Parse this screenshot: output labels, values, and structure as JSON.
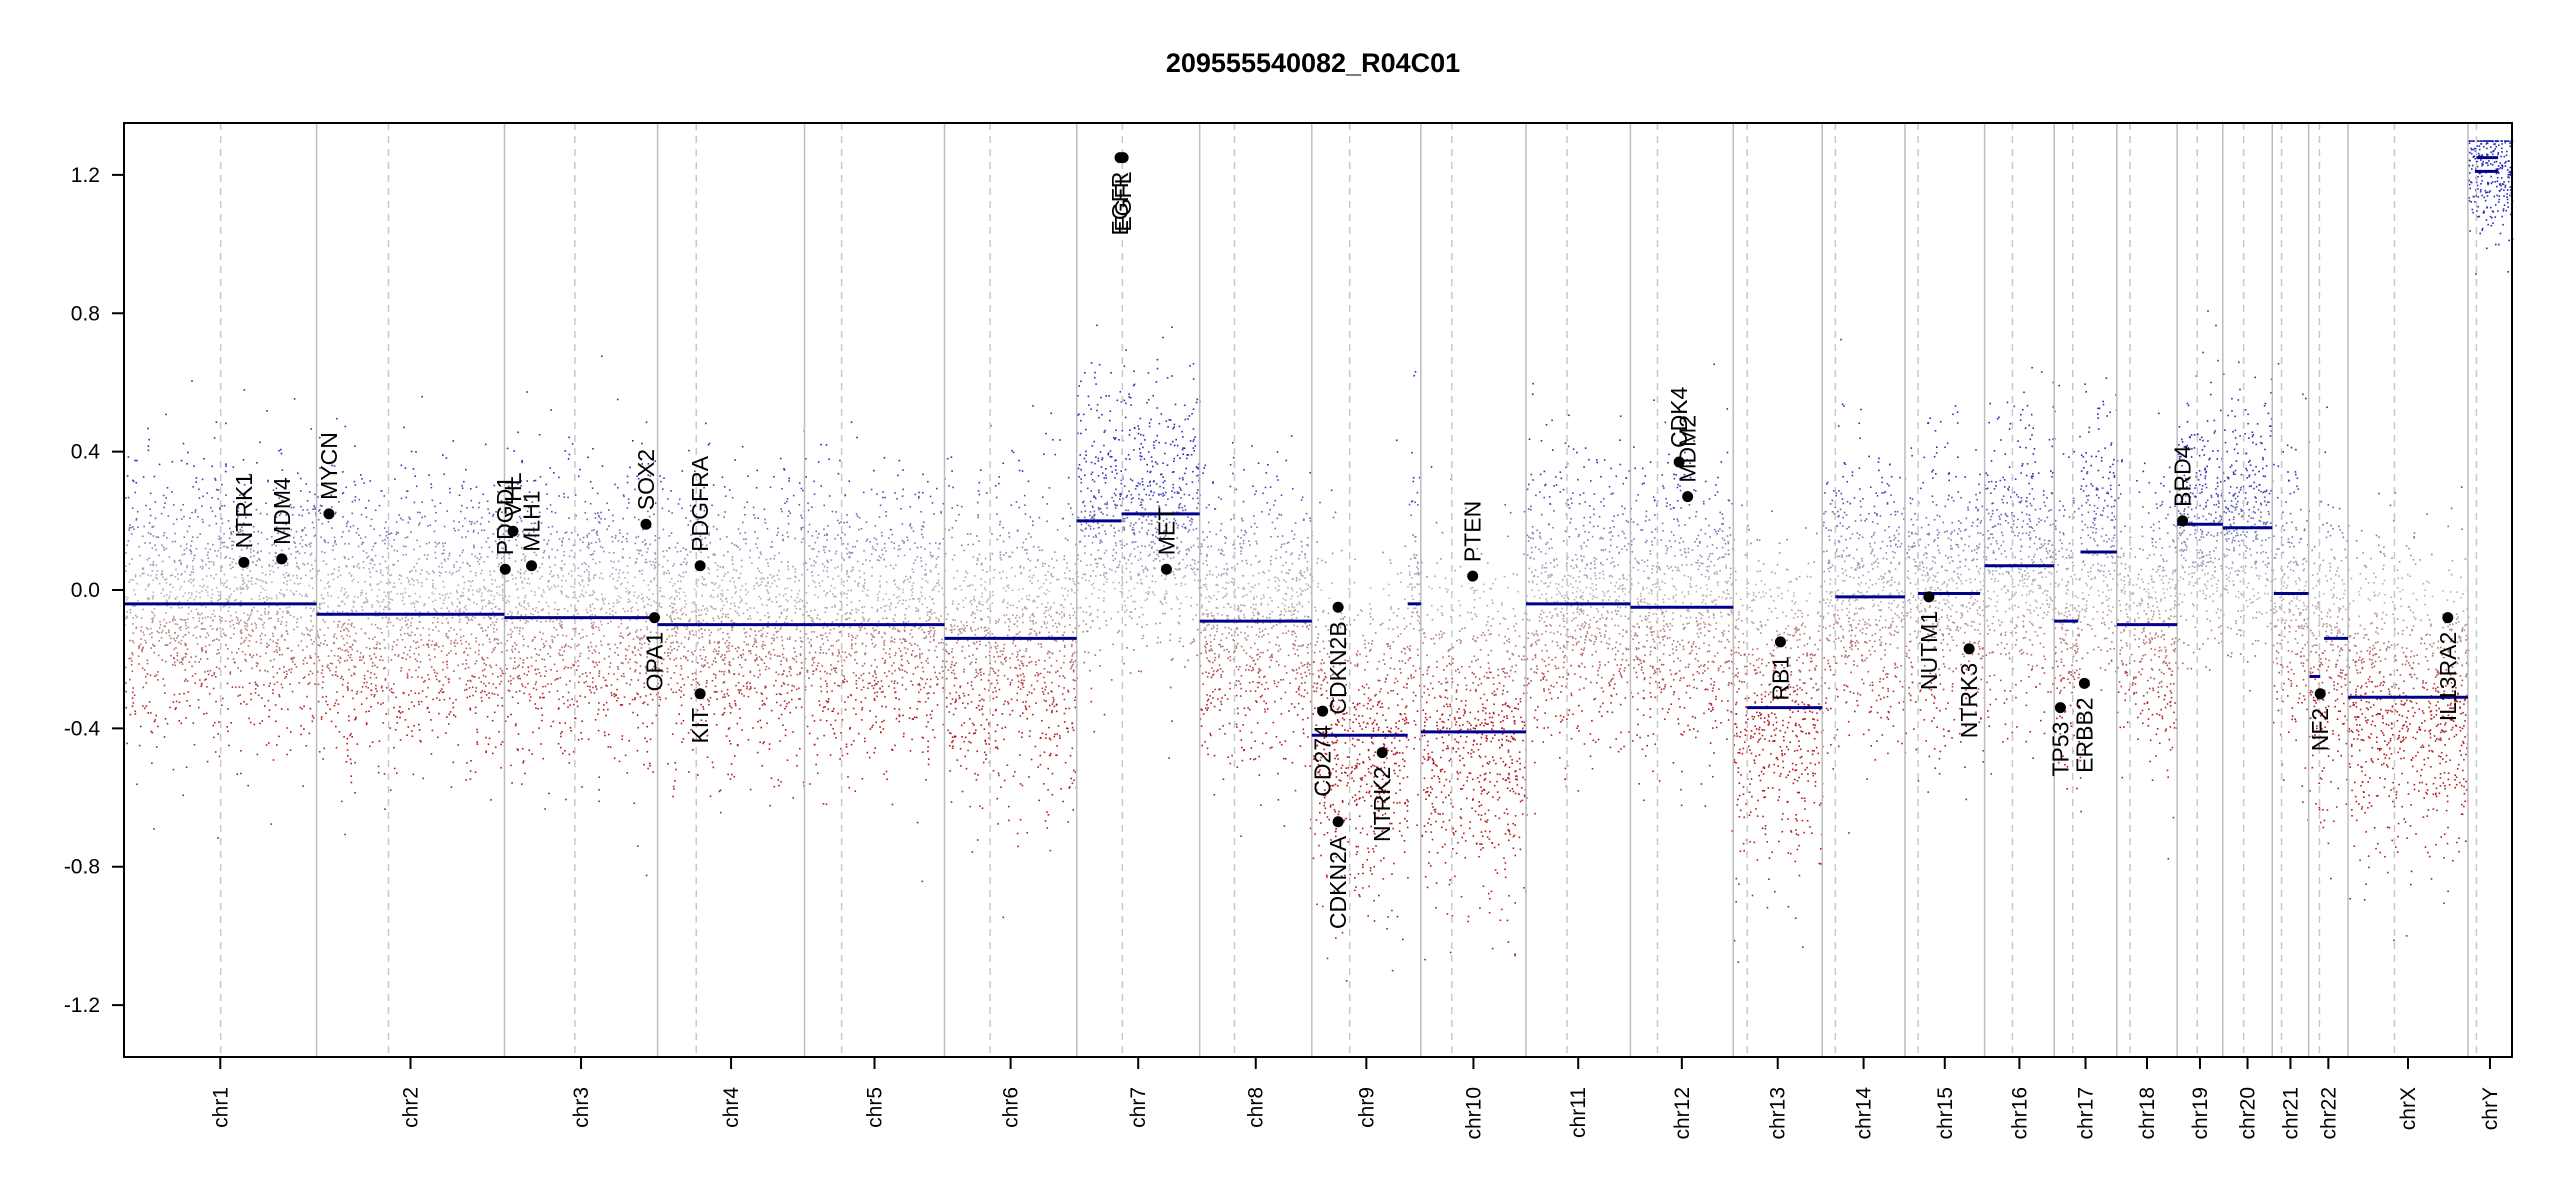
{
  "chart_data": {
    "type": "scatter",
    "title": "209555540082_R04C01",
    "xlabel": "",
    "ylabel": "",
    "ylim": [
      -1.35,
      1.35
    ],
    "y_ticks": [
      1.2,
      0.8,
      0.4,
      0.0,
      -0.4,
      -0.8,
      -1.2
    ],
    "y_tick_labels": [
      "1.2",
      "0.8",
      "0.4",
      "0.0",
      "-0.4",
      "-0.8",
      "-1.2"
    ],
    "grid": false,
    "colors": {
      "segment": "#00008b",
      "gain": "#2c2cb3",
      "loss": "#b01a1a",
      "neutral": "#b8b8b8",
      "chrom_border": "#bdbdbd",
      "centromere": "#c8c8c8",
      "gene_point": "#000000"
    },
    "chromosomes": [
      {
        "name": "chr1",
        "start": 0,
        "end": 249,
        "centromere": 125,
        "segments": [
          {
            "x0": 0,
            "x1": 249,
            "y": -0.04
          }
        ],
        "sd": 0.2
      },
      {
        "name": "chr2",
        "start": 249,
        "end": 492,
        "centromere": 342,
        "segments": [
          {
            "x0": 249,
            "x1": 492,
            "y": -0.07
          }
        ],
        "sd": 0.2
      },
      {
        "name": "chr3",
        "start": 492,
        "end": 690,
        "centromere": 583,
        "segments": [
          {
            "x0": 492,
            "x1": 690,
            "y": -0.08
          }
        ],
        "sd": 0.2
      },
      {
        "name": "chr4",
        "start": 690,
        "end": 880,
        "centromere": 740,
        "segments": [
          {
            "x0": 690,
            "x1": 880,
            "y": -0.1
          }
        ],
        "sd": 0.2
      },
      {
        "name": "chr5",
        "start": 880,
        "end": 1061,
        "centromere": 928,
        "segments": [
          {
            "x0": 880,
            "x1": 1061,
            "y": -0.1
          }
        ],
        "sd": 0.2
      },
      {
        "name": "chr6",
        "start": 1061,
        "end": 1232,
        "centromere": 1120,
        "segments": [
          {
            "x0": 1061,
            "x1": 1232,
            "y": -0.14
          }
        ],
        "sd": 0.22
      },
      {
        "name": "chr7",
        "start": 1232,
        "end": 1391,
        "centromere": 1291,
        "segments": [
          {
            "x0": 1232,
            "x1": 1290,
            "y": 0.2
          },
          {
            "x0": 1290,
            "x1": 1391,
            "y": 0.22
          }
        ],
        "sd": 0.2
      },
      {
        "name": "chr8",
        "start": 1391,
        "end": 1536,
        "centromere": 1436,
        "segments": [
          {
            "x0": 1391,
            "x1": 1536,
            "y": -0.09
          }
        ],
        "sd": 0.2
      },
      {
        "name": "chr9",
        "start": 1536,
        "end": 1677,
        "centromere": 1585,
        "segments": [
          {
            "x0": 1536,
            "x1": 1660,
            "y": -0.42
          },
          {
            "x0": 1660,
            "x1": 1677,
            "y": -0.04
          }
        ],
        "sd": 0.24
      },
      {
        "name": "chr10",
        "start": 1677,
        "end": 1813,
        "centromere": 1717,
        "segments": [
          {
            "x0": 1677,
            "x1": 1813,
            "y": -0.41
          }
        ],
        "sd": 0.24
      },
      {
        "name": "chr11",
        "start": 1813,
        "end": 1948,
        "centromere": 1866,
        "segments": [
          {
            "x0": 1813,
            "x1": 1948,
            "y": -0.04
          }
        ],
        "sd": 0.2
      },
      {
        "name": "chr12",
        "start": 1948,
        "end": 2081,
        "centromere": 1983,
        "segments": [
          {
            "x0": 1948,
            "x1": 2081,
            "y": -0.05
          }
        ],
        "sd": 0.2
      },
      {
        "name": "chr13",
        "start": 2081,
        "end": 2196,
        "centromere": 2099,
        "segments": [
          {
            "x0": 2099,
            "x1": 2196,
            "y": -0.34
          }
        ],
        "sd": 0.24
      },
      {
        "name": "chr14",
        "start": 2196,
        "end": 2303,
        "centromere": 2213,
        "segments": [
          {
            "x0": 2213,
            "x1": 2303,
            "y": -0.02
          }
        ],
        "sd": 0.2
      },
      {
        "name": "chr15",
        "start": 2303,
        "end": 2406,
        "centromere": 2320,
        "segments": [
          {
            "x0": 2320,
            "x1": 2400,
            "y": -0.01
          }
        ],
        "sd": 0.2
      },
      {
        "name": "chr16",
        "start": 2406,
        "end": 2496,
        "centromere": 2442,
        "segments": [
          {
            "x0": 2406,
            "x1": 2496,
            "y": 0.07
          }
        ],
        "sd": 0.2
      },
      {
        "name": "chr17",
        "start": 2496,
        "end": 2577,
        "centromere": 2520,
        "segments": [
          {
            "x0": 2496,
            "x1": 2527,
            "y": -0.09
          },
          {
            "x0": 2530,
            "x1": 2577,
            "y": 0.11
          }
        ],
        "sd": 0.22
      },
      {
        "name": "chr18",
        "start": 2577,
        "end": 2655,
        "centromere": 2594,
        "segments": [
          {
            "x0": 2577,
            "x1": 2655,
            "y": -0.1
          }
        ],
        "sd": 0.2
      },
      {
        "name": "chr19",
        "start": 2655,
        "end": 2714,
        "centromere": 2681,
        "segments": [
          {
            "x0": 2655,
            "x1": 2714,
            "y": 0.19
          }
        ],
        "sd": 0.18
      },
      {
        "name": "chr20",
        "start": 2714,
        "end": 2778,
        "centromere": 2741,
        "segments": [
          {
            "x0": 2714,
            "x1": 2778,
            "y": 0.18
          }
        ],
        "sd": 0.18
      },
      {
        "name": "chr21",
        "start": 2778,
        "end": 2825,
        "centromere": 2790,
        "segments": [
          {
            "x0": 2780,
            "x1": 2825,
            "y": -0.01
          }
        ],
        "sd": 0.2
      },
      {
        "name": "chr22",
        "start": 2825,
        "end": 2876,
        "centromere": 2839,
        "segments": [
          {
            "x0": 2826,
            "x1": 2840,
            "y": -0.25
          },
          {
            "x0": 2845,
            "x1": 2876,
            "y": -0.14
          }
        ],
        "sd": 0.22
      },
      {
        "name": "chrX",
        "start": 2876,
        "end": 3031,
        "centromere": 2936,
        "segments": [
          {
            "x0": 2876,
            "x1": 3031,
            "y": -0.31
          }
        ],
        "sd": 0.22
      },
      {
        "name": "chrY",
        "start": 3031,
        "end": 3088,
        "centromere": 3042,
        "segments": [
          {
            "x0": 3040,
            "x1": 3070,
            "y": 1.21
          },
          {
            "x0": 3042,
            "x1": 3070,
            "y": 1.25
          }
        ],
        "sd": 0.1
      }
    ],
    "genes": [
      {
        "name": "NTRK1",
        "x": 155,
        "y": 0.08,
        "label_side": "above"
      },
      {
        "name": "MDM4",
        "x": 204,
        "y": 0.09,
        "label_side": "above"
      },
      {
        "name": "MYCN",
        "x": 265,
        "y": 0.22,
        "label_side": "above"
      },
      {
        "name": "PDGFRA",
        "x": 745,
        "y": 0.07,
        "label_side": "above"
      },
      {
        "name": "KIT",
        "x": 745,
        "y": -0.3,
        "label_side": "below"
      },
      {
        "name": "PDGD1",
        "x": 493,
        "y": 0.06,
        "label_side": "above"
      },
      {
        "name": "VHL",
        "x": 503,
        "y": 0.17,
        "label_side": "above"
      },
      {
        "name": "MLH1",
        "x": 527,
        "y": 0.07,
        "label_side": "above"
      },
      {
        "name": "SOX2",
        "x": 675,
        "y": 0.19,
        "label_side": "above"
      },
      {
        "name": "OPA1",
        "x": 686,
        "y": -0.08,
        "label_side": "below"
      },
      {
        "name": "EGFR",
        "x": 1288,
        "y": 1.25,
        "label_side": "below"
      },
      {
        "name": "EGFL",
        "x": 1292,
        "y": 1.25,
        "label_side": "below"
      },
      {
        "name": "MET",
        "x": 1348,
        "y": 0.06,
        "label_side": "above"
      },
      {
        "name": "CDKN2B",
        "x": 1570,
        "y": -0.05,
        "label_side": "below"
      },
      {
        "name": "CD274",
        "x": 1550,
        "y": -0.35,
        "label_side": "below"
      },
      {
        "name": "CDKN2A",
        "x": 1570,
        "y": -0.67,
        "label_side": "below"
      },
      {
        "name": "NTRK2",
        "x": 1627,
        "y": -0.47,
        "label_side": "below"
      },
      {
        "name": "PTEN",
        "x": 1744,
        "y": 0.04,
        "label_side": "above"
      },
      {
        "name": "CDK4",
        "x": 2011,
        "y": 0.37,
        "label_side": "above"
      },
      {
        "name": "MDM2",
        "x": 2022,
        "y": 0.27,
        "label_side": "above"
      },
      {
        "name": "RB1",
        "x": 2142,
        "y": -0.15,
        "label_side": "below"
      },
      {
        "name": "NUTM1",
        "x": 2334,
        "y": -0.02,
        "label_side": "below"
      },
      {
        "name": "NTRK3",
        "x": 2386,
        "y": -0.17,
        "label_side": "below"
      },
      {
        "name": "TP53",
        "x": 2504,
        "y": -0.34,
        "label_side": "below"
      },
      {
        "name": "ERBB2",
        "x": 2535,
        "y": -0.27,
        "label_side": "below"
      },
      {
        "name": "BRD4",
        "x": 2662,
        "y": 0.2,
        "label_side": "above"
      },
      {
        "name": "NF2",
        "x": 2840,
        "y": -0.3,
        "label_side": "below"
      },
      {
        "name": "IL13RA2",
        "x": 3005,
        "y": -0.08,
        "label_side": "below"
      }
    ]
  }
}
